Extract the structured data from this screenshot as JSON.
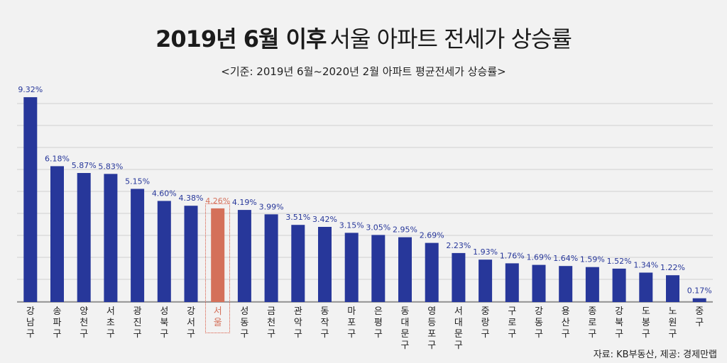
{
  "title": {
    "bold": "2019년 6월 이후",
    "light": "서울 아파트 전세가 상승률"
  },
  "subtitle": "<기준: 2019년 6월~2020년 2월 아파트 평균전세가 상승률>",
  "source": "자료: KB부동산, 제공: 경제만랩",
  "colors": {
    "bar": "#27379a",
    "highlight": "#d4705a",
    "value_label": "#27379a",
    "grid": "#d0d0d0",
    "baseline": "#555555"
  },
  "chart_data": {
    "type": "bar",
    "categories": [
      "강남구",
      "송파구",
      "양천구",
      "서초구",
      "광진구",
      "성북구",
      "강서구",
      "서울",
      "성동구",
      "금천구",
      "관악구",
      "동작구",
      "마포구",
      "은평구",
      "동대문구",
      "영등포구",
      "서대문구",
      "중랑구",
      "구로구",
      "강동구",
      "용산구",
      "종로구",
      "강북구",
      "도봉구",
      "노원구",
      "중구"
    ],
    "values": [
      9.32,
      6.18,
      5.87,
      5.83,
      5.15,
      4.6,
      4.38,
      4.26,
      4.19,
      3.99,
      3.51,
      3.42,
      3.15,
      3.05,
      2.95,
      2.69,
      2.23,
      1.93,
      1.76,
      1.69,
      1.64,
      1.59,
      1.52,
      1.34,
      1.22,
      0.17
    ],
    "value_labels": [
      "9.32%",
      "6.18%",
      "5.87%",
      "5.83%",
      "5.15%",
      "4.60%",
      "4.38%",
      "4.26%",
      "4.19%",
      "3.99%",
      "3.51%",
      "3.42%",
      "3.15%",
      "3.05%",
      "2.95%",
      "2.69%",
      "2.23%",
      "1.93%",
      "1.76%",
      "1.69%",
      "1.64%",
      "1.59%",
      "1.52%",
      "1.34%",
      "1.22%",
      "0.17%"
    ],
    "highlight_category": "서울",
    "ylim": [
      0,
      10
    ],
    "grid": true,
    "title": "2019년 6월 이후 서울 아파트 전세가 상승률",
    "xlabel": "",
    "ylabel": ""
  }
}
